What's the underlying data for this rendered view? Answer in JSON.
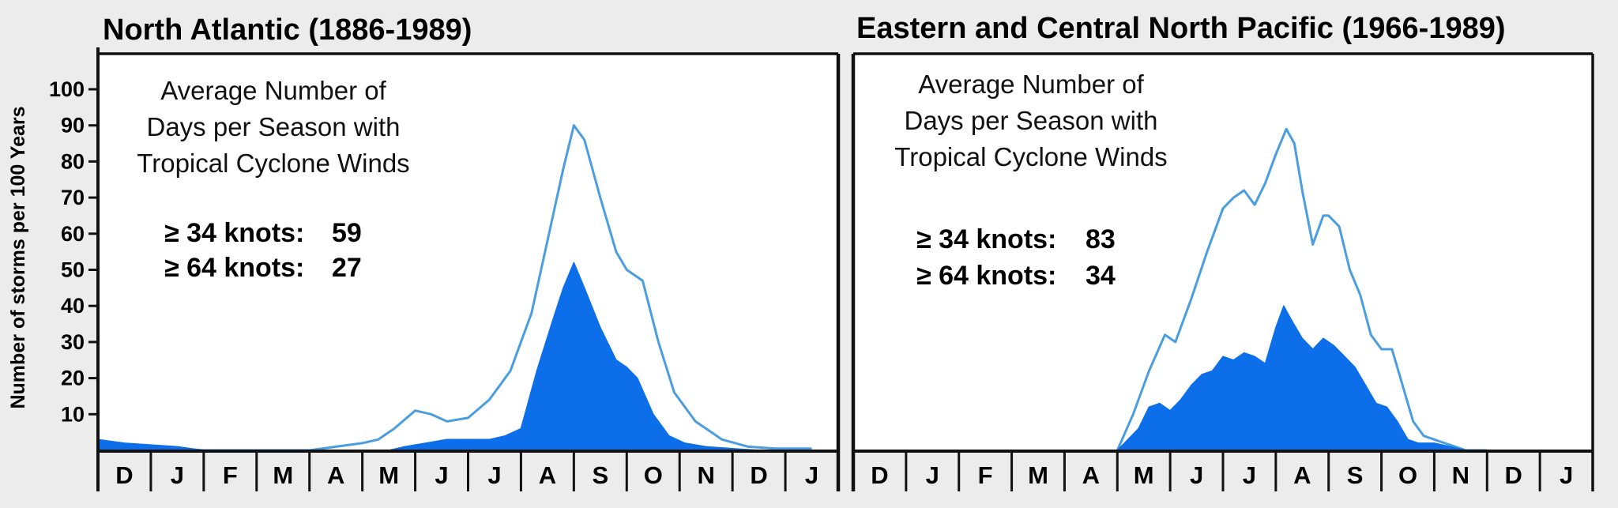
{
  "chart_data": [
    {
      "type": "area",
      "title": "North Atlantic (1886-1989)",
      "ylabel": "Number of storms per 100 Years",
      "ylim": [
        0,
        105
      ],
      "yticks": [
        10,
        20,
        30,
        40,
        50,
        60,
        70,
        80,
        90,
        100
      ],
      "categories": [
        "D",
        "J",
        "F",
        "M",
        "A",
        "M",
        "J",
        "J",
        "A",
        "S",
        "O",
        "N",
        "D",
        "J"
      ],
      "annotation": [
        "Average Number of",
        "Days per Season with",
        "Tropical Cyclone Winds"
      ],
      "stats": [
        {
          "label": "≥ 34 knots:",
          "value": "59"
        },
        {
          "label": "≥ 64 knots:",
          "value": "27"
        }
      ],
      "series": [
        {
          "color": "#4a9ee0",
          "fill": "none",
          "x": [
            0,
            0.5,
            1.0,
            1.5,
            2,
            3,
            4.0,
            4.5,
            5.0,
            5.3,
            5.6,
            6.0,
            6.3,
            6.6,
            7.0,
            7.4,
            7.8,
            8.2,
            8.5,
            8.8,
            9.0,
            9.2,
            9.5,
            9.8,
            10.0,
            10.3,
            10.6,
            10.9,
            11.3,
            11.8,
            12.3,
            12.8,
            13.5
          ],
          "values": [
            2,
            1.5,
            1,
            0.5,
            0,
            0,
            0,
            1,
            2,
            3,
            6,
            11,
            10,
            8,
            9,
            14,
            22,
            38,
            58,
            78,
            90,
            86,
            70,
            55,
            50,
            47,
            30,
            16,
            8,
            3,
            1,
            0.5,
            0.5
          ]
        },
        {
          "color": "#0c6ee8",
          "fill": "#0c6ee8",
          "x": [
            0,
            0.5,
            1.0,
            1.5,
            2,
            5.5,
            5.8,
            6.2,
            6.6,
            7.0,
            7.4,
            7.7,
            8.0,
            8.3,
            8.6,
            8.8,
            9.0,
            9.2,
            9.5,
            9.8,
            10.0,
            10.2,
            10.5,
            10.8,
            11.1,
            11.5,
            12.0,
            12.5,
            13.0
          ],
          "values": [
            3,
            2,
            1.5,
            1,
            0,
            0,
            1,
            2,
            3,
            3,
            3,
            4,
            6,
            22,
            36,
            45,
            52,
            45,
            34,
            25,
            23,
            20,
            10,
            4,
            2,
            1,
            0.5,
            0,
            0
          ]
        }
      ]
    },
    {
      "type": "area",
      "title": "Eastern and Central North Pacific (1966-1989)",
      "ylim": [
        0,
        105
      ],
      "categories": [
        "D",
        "J",
        "F",
        "M",
        "A",
        "M",
        "J",
        "J",
        "A",
        "S",
        "O",
        "N",
        "D",
        "J"
      ],
      "annotation": [
        "Average Number of",
        "Days per Season with",
        "Tropical Cyclone Winds"
      ],
      "stats": [
        {
          "label": "≥ 34 knots:",
          "value": "83"
        },
        {
          "label": "≥ 64 knots:",
          "value": "34"
        }
      ],
      "series": [
        {
          "color": "#4a9ee0",
          "fill": "none",
          "x": [
            5.0,
            5.3,
            5.6,
            5.9,
            6.1,
            6.4,
            6.7,
            7.0,
            7.2,
            7.4,
            7.6,
            7.8,
            8.0,
            8.2,
            8.35,
            8.5,
            8.7,
            8.9,
            9.0,
            9.2,
            9.4,
            9.6,
            9.8,
            10.0,
            10.2,
            10.4,
            10.6,
            10.8,
            11.0,
            11.2,
            11.4,
            11.6,
            12.0
          ],
          "values": [
            0,
            10,
            22,
            32,
            30,
            42,
            55,
            67,
            70,
            72,
            68,
            74,
            82,
            89,
            85,
            72,
            57,
            65,
            65,
            62,
            50,
            43,
            32,
            28,
            28,
            18,
            8,
            4,
            3,
            2,
            1,
            0,
            0
          ]
        },
        {
          "color": "#0c6ee8",
          "fill": "#0c6ee8",
          "x": [
            5.0,
            5.2,
            5.4,
            5.6,
            5.8,
            6.0,
            6.2,
            6.4,
            6.6,
            6.8,
            7.0,
            7.2,
            7.4,
            7.6,
            7.8,
            8.0,
            8.15,
            8.3,
            8.5,
            8.7,
            8.9,
            9.1,
            9.3,
            9.5,
            9.7,
            9.9,
            10.1,
            10.3,
            10.5,
            10.7,
            11.0,
            11.3,
            11.6
          ],
          "values": [
            0,
            3,
            6,
            12,
            13,
            11,
            14,
            18,
            21,
            22,
            26,
            25,
            27,
            26,
            24,
            34,
            40,
            36,
            31,
            28,
            31,
            29,
            26,
            23,
            18,
            13,
            12,
            8,
            3,
            2,
            2,
            1,
            0
          ]
        }
      ]
    }
  ]
}
